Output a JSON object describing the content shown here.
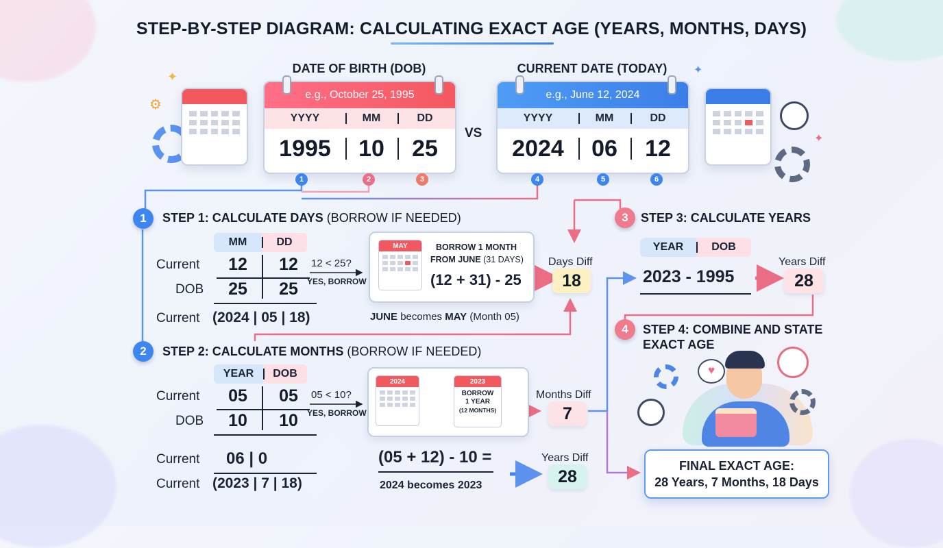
{
  "title": "STEP-BY-STEP DIAGRAM: CALCULATING EXACT AGE (YEARS, MONTHS, DAYS)",
  "dob": {
    "heading": "DATE OF BIRTH (DOB)",
    "example": "e.g., October 25, 1995",
    "labels": [
      "YYYY",
      "MM",
      "DD"
    ],
    "values": [
      "1995",
      "10",
      "25"
    ]
  },
  "vs": "VS",
  "current": {
    "heading": "CURRENT DATE (TODAY)",
    "example": "e.g., June 12, 2024",
    "labels": [
      "YYYY",
      "MM",
      "DD"
    ],
    "values": [
      "2024",
      "06",
      "12"
    ]
  },
  "markers": [
    "1",
    "2",
    "3",
    "4",
    "5",
    "6"
  ],
  "step1": {
    "num": "1",
    "title": "STEP 1: CALCULATE DAYS",
    "subtitle": "(BORROW IF NEEDED)",
    "header": [
      "MM",
      "DD"
    ],
    "rows": [
      {
        "label": "Current",
        "values": [
          "12",
          "12"
        ]
      },
      {
        "label": "DOB",
        "values": [
          "25",
          "25"
        ]
      }
    ],
    "compare": "12 < 25?",
    "compare_note": "YES, BORROW",
    "calendar_month": "MAY",
    "borrow_text_bold": "BORROW 1 MONTH",
    "borrow_text_line2_bold": "FROM JUNE",
    "borrow_text_line2_rest": "(31 DAYS)",
    "formula": "(12 + 31) - 25",
    "result_label": "Days Diff",
    "result": "18",
    "result_row_label": "Current",
    "result_row": "(2024 | 05 | 18)",
    "note_a": "JUNE",
    "note_b": "becomes",
    "note_c": "MAY",
    "note_d": "(Month 05)"
  },
  "step2": {
    "num": "2",
    "title": "STEP 2: CALCULATE MONTHS",
    "subtitle": "(BORROW IF NEEDED)",
    "header": [
      "YEAR",
      "DOB"
    ],
    "rows": [
      {
        "label": "Current",
        "values": [
          "05",
          "05"
        ]
      },
      {
        "label": "DOB",
        "values": [
          "10",
          "10"
        ]
      }
    ],
    "compare": "05 < 10?",
    "compare_note": "YES, BORROW",
    "cal_from": "2024",
    "cal_to": "2023",
    "borrow_line1": "BORROW",
    "borrow_line2": "1 YEAR",
    "borrow_line3": "(12 MONTHS)",
    "result_label": "Months Diff",
    "result": "7",
    "mid_row_label": "Current",
    "mid_row": "06 | 0",
    "final_row_label": "Current",
    "final_row": "(2023 | 7 | 18)",
    "formula": "(05 + 12) - 10 =",
    "formula_note": "2024 becomes 2023",
    "years_label": "Years Diff",
    "years": "28"
  },
  "step3": {
    "num": "3",
    "title": "STEP 3: CALCULATE YEARS",
    "header": [
      "YEAR",
      "DOB"
    ],
    "formula": "2023 - 1995",
    "result_label": "Years Diff",
    "result": "28"
  },
  "step4": {
    "num": "4",
    "title_line1": "STEP 4: COMBINE AND STATE",
    "title_line2": "EXACT AGE",
    "final_title": "FINAL EXACT AGE:",
    "final_value": "28 Years, 7 Months, 18 Days"
  },
  "colors": {
    "dob_accent": "#f4585f",
    "current_accent": "#3b7ee8",
    "step1": "#3d86f0",
    "step2": "#3d86f0",
    "step3": "#f07a8e",
    "step4": "#f07a8e",
    "days_box": "#fdf0c2",
    "months_box": "#fde2e6",
    "years_box": "#d6f3ef"
  }
}
